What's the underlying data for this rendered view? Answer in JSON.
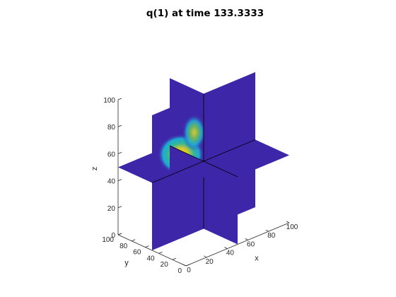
{
  "chart_data": {
    "type": "heatmap",
    "title": "q(1) at time 133.3333",
    "xlabel": "x",
    "ylabel": "y",
    "zlabel": "z",
    "xlim": [
      0,
      100
    ],
    "ylim": [
      0,
      100
    ],
    "zlim": [
      0,
      100
    ],
    "xticks": [
      "0",
      "20",
      "40",
      "60",
      "80",
      "100"
    ],
    "yticks": [
      "0",
      "20",
      "40",
      "60",
      "80",
      "100"
    ],
    "zticks": [
      "0",
      "20",
      "40",
      "60",
      "80",
      "100"
    ],
    "slices": {
      "x": 50,
      "y": 50,
      "z": 50
    },
    "grid": false,
    "colormap": "parula",
    "colors": {
      "background_slice": "#3e26a8",
      "blob_edge": "#1fa9d6",
      "blob_mid": "#33b798",
      "blob_core": "#f5e024",
      "slice_edge": "#000000"
    },
    "features": [
      {
        "name": "blob on y slice",
        "center": {
          "x": 28,
          "y": 50,
          "z": 62
        },
        "peak": 1.0
      },
      {
        "name": "blob on x slice",
        "center": {
          "x": 50,
          "y": 64,
          "z": 68
        },
        "peak": 0.9
      }
    ]
  }
}
